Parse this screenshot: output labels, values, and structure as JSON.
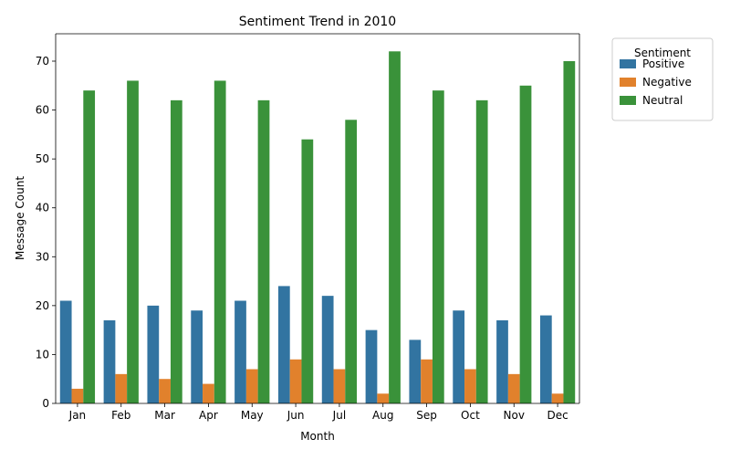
{
  "chart_data": {
    "type": "bar",
    "title": "Sentiment Trend in 2010",
    "xlabel": "Month",
    "ylabel": "Message Count",
    "ylim": [
      0,
      75.6
    ],
    "yticks": [
      0,
      10,
      20,
      30,
      40,
      50,
      60,
      70
    ],
    "grid": false,
    "legend": {
      "title": "Sentiment",
      "placement": "outside-top-right"
    },
    "categories": [
      "Jan",
      "Feb",
      "Mar",
      "Apr",
      "May",
      "Jun",
      "Jul",
      "Aug",
      "Sep",
      "Oct",
      "Nov",
      "Dec"
    ],
    "series": [
      {
        "name": "Positive",
        "color": "#3274a1",
        "values": [
          21,
          17,
          20,
          19,
          21,
          24,
          22,
          15,
          13,
          19,
          17,
          18
        ]
      },
      {
        "name": "Negative",
        "color": "#e1812c",
        "values": [
          3,
          6,
          5,
          4,
          7,
          9,
          7,
          2,
          9,
          7,
          6,
          2
        ]
      },
      {
        "name": "Neutral",
        "color": "#3a923a",
        "values": [
          64,
          66,
          62,
          66,
          62,
          54,
          58,
          72,
          64,
          62,
          65,
          70
        ]
      }
    ]
  }
}
